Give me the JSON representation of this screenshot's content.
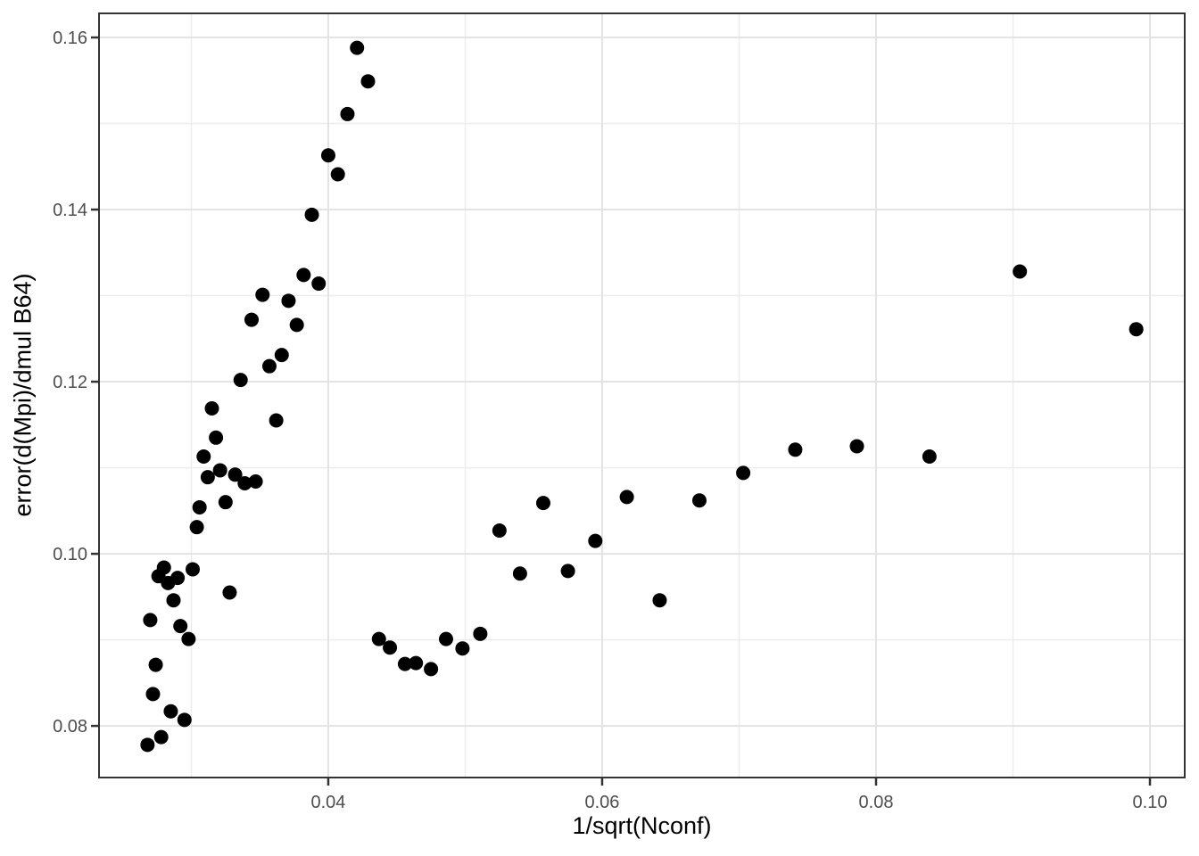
{
  "chart_data": {
    "type": "scatter",
    "title": "",
    "xlabel": "1/sqrt(Nconf)",
    "ylabel": "error(d(Mpi)/dmul B64)",
    "xlim": [
      0.02326,
      0.10254
    ],
    "ylim": [
      0.074,
      0.1628
    ],
    "grid": "major and minor, light grey on white panel",
    "legend_position": "none",
    "x_ticks": [
      {
        "value": 0.04,
        "label": "0.04"
      },
      {
        "value": 0.06,
        "label": "0.06"
      },
      {
        "value": 0.08,
        "label": "0.08"
      },
      {
        "value": 0.1,
        "label": "0.10"
      }
    ],
    "y_ticks": [
      {
        "value": 0.08,
        "label": "0.08"
      },
      {
        "value": 0.1,
        "label": "0.10"
      },
      {
        "value": 0.12,
        "label": "0.12"
      },
      {
        "value": 0.14,
        "label": "0.14"
      },
      {
        "value": 0.16,
        "label": "0.16"
      }
    ],
    "x_minor_ticks": [
      0.03,
      0.05,
      0.07,
      0.09
    ],
    "y_minor_ticks": [
      0.09,
      0.11,
      0.13,
      0.15
    ],
    "points": [
      [
        0.0268,
        0.0778
      ],
      [
        0.027,
        0.0923
      ],
      [
        0.0272,
        0.0837
      ],
      [
        0.0274,
        0.0871
      ],
      [
        0.0276,
        0.0974
      ],
      [
        0.0278,
        0.0787
      ],
      [
        0.028,
        0.0984
      ],
      [
        0.0283,
        0.0966
      ],
      [
        0.0285,
        0.0817
      ],
      [
        0.0287,
        0.0946
      ],
      [
        0.029,
        0.0972
      ],
      [
        0.0292,
        0.0916
      ],
      [
        0.0295,
        0.0807
      ],
      [
        0.0298,
        0.0901
      ],
      [
        0.0301,
        0.0982
      ],
      [
        0.0304,
        0.1031
      ],
      [
        0.0306,
        0.1054
      ],
      [
        0.0309,
        0.1113
      ],
      [
        0.0312,
        0.1089
      ],
      [
        0.0315,
        0.1169
      ],
      [
        0.0318,
        0.1135
      ],
      [
        0.0321,
        0.1097
      ],
      [
        0.0325,
        0.106
      ],
      [
        0.0328,
        0.0955
      ],
      [
        0.0332,
        0.1092
      ],
      [
        0.0336,
        0.1202
      ],
      [
        0.0339,
        0.1082
      ],
      [
        0.0344,
        0.1272
      ],
      [
        0.0347,
        0.1084
      ],
      [
        0.0352,
        0.1301
      ],
      [
        0.0357,
        0.1218
      ],
      [
        0.0362,
        0.1155
      ],
      [
        0.0366,
        0.1231
      ],
      [
        0.0371,
        0.1294
      ],
      [
        0.0377,
        0.1266
      ],
      [
        0.0382,
        0.1324
      ],
      [
        0.0388,
        0.1394
      ],
      [
        0.0393,
        0.1314
      ],
      [
        0.04,
        0.1463
      ],
      [
        0.0407,
        0.1441
      ],
      [
        0.0414,
        0.1511
      ],
      [
        0.0421,
        0.1588
      ],
      [
        0.0429,
        0.1549
      ],
      [
        0.0437,
        0.0901
      ],
      [
        0.0445,
        0.0891
      ],
      [
        0.0456,
        0.0872
      ],
      [
        0.0464,
        0.0873
      ],
      [
        0.0475,
        0.0866
      ],
      [
        0.0486,
        0.0901
      ],
      [
        0.0498,
        0.089
      ],
      [
        0.0511,
        0.0907
      ],
      [
        0.0525,
        0.1027
      ],
      [
        0.054,
        0.0977
      ],
      [
        0.0557,
        0.1059
      ],
      [
        0.0575,
        0.098
      ],
      [
        0.0595,
        0.1015
      ],
      [
        0.0618,
        0.1066
      ],
      [
        0.0642,
        0.0946
      ],
      [
        0.0671,
        0.1062
      ],
      [
        0.0703,
        0.1094
      ],
      [
        0.0741,
        0.1121
      ],
      [
        0.0786,
        0.1125
      ],
      [
        0.0839,
        0.1113
      ],
      [
        0.0905,
        0.1328
      ],
      [
        0.099,
        0.1261
      ]
    ]
  },
  "style": {
    "background": "#FFFFFF",
    "panel_background": "#FFFFFF",
    "grid_major_color": "#E3E3E3",
    "grid_minor_color": "#EDEDED",
    "panel_border_color": "#333333",
    "tick_mark_color": "#333333",
    "tick_label_color": "#4D4D4D",
    "axis_title_color": "#000000",
    "point_color": "#000000",
    "point_radius": 8,
    "tick_label_font_px": 20,
    "axis_title_font_px": 27
  }
}
